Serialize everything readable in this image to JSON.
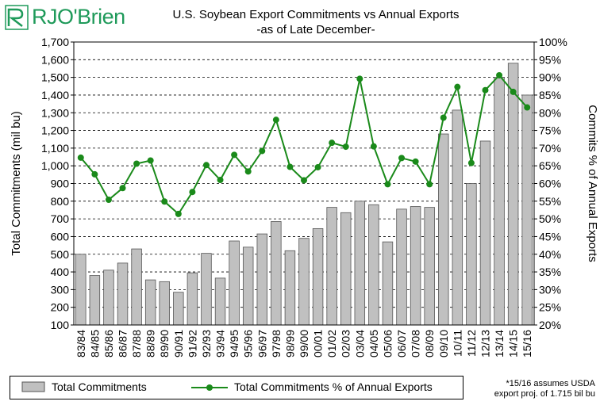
{
  "logo": {
    "text": "RJO'Brien",
    "icon": "rjo-brien-logo-mark",
    "color": "#1f9a5a"
  },
  "chart_data": {
    "type": "bar+line",
    "title": "U.S. Soybean Export Commitments vs Annual Exports",
    "subtitle": "-as of Late December-",
    "ylabel": "Total Commitments  (mil bu)",
    "y2label": "Commits % of Annual Exports",
    "ylim": [
      100,
      1700
    ],
    "yticks": [
      100,
      200,
      300,
      400,
      500,
      600,
      700,
      800,
      900,
      1000,
      1100,
      1200,
      1300,
      1400,
      1500,
      1600,
      1700
    ],
    "ytick_labels": [
      "100",
      "200",
      "300",
      "400",
      "500",
      "600",
      "700",
      "800",
      "900",
      "1,000",
      "1,100",
      "1,200",
      "1,300",
      "1,400",
      "1,500",
      "1,600",
      "1,700"
    ],
    "y2lim": [
      20,
      100
    ],
    "y2ticks": [
      20,
      25,
      30,
      35,
      40,
      45,
      50,
      55,
      60,
      65,
      70,
      75,
      80,
      85,
      90,
      95,
      100
    ],
    "y2tick_labels": [
      "20%",
      "25%",
      "30%",
      "35%",
      "40%",
      "45%",
      "50%",
      "55%",
      "60%",
      "65%",
      "70%",
      "75%",
      "80%",
      "85%",
      "90%",
      "95%",
      "100%"
    ],
    "grid": "horizontal-dashed",
    "legend_position": "bottom",
    "categories": [
      "83/84",
      "84/85",
      "85/86",
      "86/87",
      "87/88",
      "88/89",
      "89/90",
      "90/91",
      "91/92",
      "92/93",
      "93/94",
      "94/95",
      "95/96",
      "96/97",
      "97/98",
      "98/99",
      "99/00",
      "00/01",
      "01/02",
      "02/03",
      "03/04",
      "04/05",
      "05/06",
      "06/07",
      "07/08",
      "08/09",
      "09/10",
      "10/11",
      "11/12",
      "12/13",
      "13/14",
      "14/15",
      "15/16"
    ],
    "series": [
      {
        "name": "Total Commitments",
        "type": "bar",
        "axis": "left",
        "color": "#c0c0c0",
        "values": [
          500,
          380,
          410,
          450,
          530,
          355,
          345,
          285,
          395,
          505,
          365,
          575,
          540,
          615,
          685,
          520,
          590,
          645,
          765,
          735,
          800,
          780,
          570,
          755,
          770,
          765,
          1180,
          1315,
          900,
          1140,
          1500,
          1580,
          1400
        ]
      },
      {
        "name": "Total Commitments % of Annual Exports",
        "type": "line",
        "axis": "right",
        "color": "#1a8a1a",
        "values": [
          67.3,
          62.6,
          55.4,
          58.7,
          65.6,
          66.5,
          54.9,
          51.4,
          57.6,
          65.2,
          61.0,
          68.1,
          63.4,
          69.2,
          78.0,
          64.7,
          60.9,
          64.6,
          71.5,
          70.4,
          89.6,
          70.5,
          59.8,
          67.2,
          66.2,
          59.8,
          78.6,
          87.3,
          65.8,
          86.4,
          90.6,
          85.9,
          81.5
        ]
      }
    ]
  },
  "legend": {
    "bar_label": "Total Commitments",
    "line_label": "Total Commitments % of Annual Exports"
  },
  "footnote": {
    "line1": "*15/16 assumes USDA",
    "line2": "export proj. of 1.715 bil bu"
  }
}
